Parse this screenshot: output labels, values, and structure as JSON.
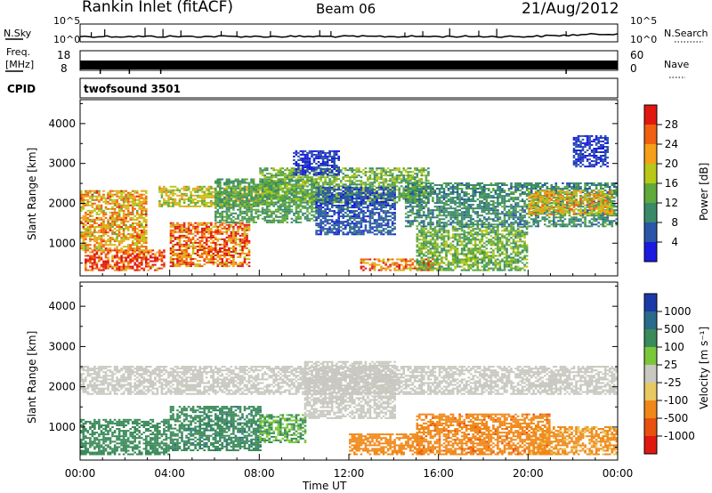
{
  "header": {
    "station": "Rankin Inlet (fitACF)",
    "beam": "Beam 06",
    "date": "21/Aug/2012"
  },
  "noise_panel": {
    "left_label": "N.Sky",
    "right_label": "N.Search",
    "left_ticks": [
      "10^5",
      "10^0"
    ],
    "right_ticks": [
      "10^5",
      "10^0"
    ]
  },
  "freq_panel": {
    "left_label_1": "Freq.",
    "left_label_2": "[MHz]",
    "left_ticks": [
      "18",
      "8"
    ],
    "right_label": "Nave",
    "right_ticks": [
      "60",
      "0"
    ]
  },
  "cpid": {
    "label": "CPID",
    "value": "twofsound 3501"
  },
  "chart_data": [
    {
      "type": "heatmap",
      "name": "power",
      "ylabel": "Slant Range [km]",
      "xlabel": "Time UT",
      "xlim": [
        "00:00",
        "24:00"
      ],
      "ylim": [
        180,
        4600
      ],
      "y_ticks": [
        1000,
        2000,
        3000,
        4000
      ],
      "colorbar": {
        "label": "Power [dB]",
        "ticks": [
          "4",
          "8",
          "12",
          "16",
          "20",
          "24",
          "28"
        ],
        "colors": [
          "#1a1ae0",
          "#2a55a8",
          "#3a8a6a",
          "#5faa3a",
          "#b8c818",
          "#f4a018",
          "#f06010",
          "#e01810"
        ]
      },
      "regions": [
        {
          "t": [
            0.2,
            3.8
          ],
          "range": [
            300,
            800
          ],
          "value": 28
        },
        {
          "t": [
            0.0,
            3.0
          ],
          "range": [
            800,
            2300
          ],
          "value": 22
        },
        {
          "t": [
            4.0,
            7.5
          ],
          "range": [
            400,
            1500
          ],
          "value": 26
        },
        {
          "t": [
            3.5,
            8.5
          ],
          "range": [
            1900,
            2400
          ],
          "value": 18
        },
        {
          "t": [
            6.0,
            10.5
          ],
          "range": [
            1500,
            2600
          ],
          "value": 12
        },
        {
          "t": [
            8.0,
            15.5
          ],
          "range": [
            2000,
            2900
          ],
          "value": 14
        },
        {
          "t": [
            10.5,
            14.0
          ],
          "range": [
            1200,
            2400
          ],
          "value": 6
        },
        {
          "t": [
            12.5,
            16.0
          ],
          "range": [
            300,
            600
          ],
          "value": 24
        },
        {
          "t": [
            15.0,
            20.0
          ],
          "range": [
            300,
            1400
          ],
          "value": 14
        },
        {
          "t": [
            14.5,
            24.0
          ],
          "range": [
            1400,
            2500
          ],
          "value": 10
        },
        {
          "t": [
            20.0,
            23.8
          ],
          "range": [
            1700,
            2300
          ],
          "value": 20
        },
        {
          "t": [
            22.0,
            23.6
          ],
          "range": [
            2900,
            3700
          ],
          "value": 4
        },
        {
          "t": [
            9.5,
            11.5
          ],
          "range": [
            2700,
            3300
          ],
          "value": 4
        }
      ]
    },
    {
      "type": "heatmap",
      "name": "velocity",
      "ylabel": "Slant Range [km]",
      "xlabel": "Time UT",
      "xlim": [
        "00:00",
        "24:00"
      ],
      "ylim": [
        180,
        4600
      ],
      "y_ticks": [
        1000,
        2000,
        3000,
        4000
      ],
      "x_tick_labels": [
        "00:00",
        "04:00",
        "08:00",
        "12:00",
        "16:00",
        "20:00",
        "00:00"
      ],
      "colorbar": {
        "label": "Velocity [m s⁻¹]",
        "ticks": [
          "1000",
          "500",
          "100",
          "25",
          "-25",
          "-100",
          "-500",
          "-1000"
        ],
        "colors": [
          "#1a3aa8",
          "#2a6a8a",
          "#3a8a5a",
          "#7ac83a",
          "#c8c8c0",
          "#e8c860",
          "#f08818",
          "#e85010",
          "#e01810"
        ]
      },
      "regions": [
        {
          "t": [
            0.0,
            24.0
          ],
          "range": [
            1800,
            2500
          ],
          "value": 0
        },
        {
          "t": [
            0.0,
            4.0
          ],
          "range": [
            300,
            1200
          ],
          "value": 200
        },
        {
          "t": [
            4.0,
            8.0
          ],
          "range": [
            400,
            1500
          ],
          "value": 400
        },
        {
          "t": [
            8.0,
            10.0
          ],
          "range": [
            600,
            1300
          ],
          "value": 100
        },
        {
          "t": [
            12.0,
            15.0
          ],
          "range": [
            300,
            800
          ],
          "value": -150
        },
        {
          "t": [
            15.0,
            21.0
          ],
          "range": [
            300,
            1300
          ],
          "value": -400
        },
        {
          "t": [
            20.0,
            24.0
          ],
          "range": [
            300,
            1000
          ],
          "value": -120
        },
        {
          "t": [
            10.0,
            14.0
          ],
          "range": [
            1200,
            2600
          ],
          "value": 0
        }
      ]
    }
  ]
}
